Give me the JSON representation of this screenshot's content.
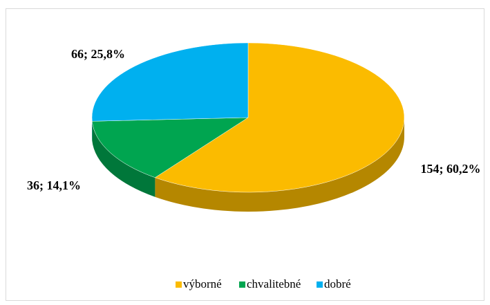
{
  "chart_data": {
    "type": "pie",
    "categories": [
      "výborné",
      "chvalitebné",
      "dobré"
    ],
    "values": [
      154,
      36,
      66
    ],
    "value_labels": [
      "154; 60,2%",
      "36; 14,1%",
      "66; 25,8%"
    ],
    "colors": [
      "#fbbb00",
      "#00a550",
      "#00b0ef"
    ],
    "legend": "bottom"
  }
}
